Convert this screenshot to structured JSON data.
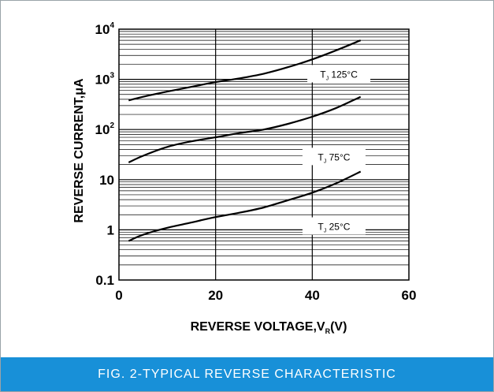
{
  "caption": "FIG. 2-TYPICAL  REVERSE  CHARACTERISTIC",
  "chart_data": {
    "type": "line",
    "title": "",
    "xlabel": "REVERSE  VOLTAGE,V",
    "xlabel_sub": "R",
    "xlabel_suffix": "(V)",
    "ylabel": "REVERSE  CURRENT,μA",
    "xlim": [
      0,
      60
    ],
    "ylim": [
      0.1,
      10000
    ],
    "yscale": "log",
    "grid": true,
    "x_ticks": [
      {
        "value": 0,
        "label": "0"
      },
      {
        "value": 20,
        "label": "20"
      },
      {
        "value": 40,
        "label": "40"
      },
      {
        "value": 60,
        "label": "60"
      }
    ],
    "y_ticks": [
      {
        "value": 0.1,
        "base": "0.1",
        "exp": ""
      },
      {
        "value": 1,
        "base": "1",
        "exp": ""
      },
      {
        "value": 10,
        "base": "10",
        "exp": ""
      },
      {
        "value": 100,
        "base": "10",
        "exp": "2"
      },
      {
        "value": 1000,
        "base": "10",
        "exp": "3"
      },
      {
        "value": 10000,
        "base": "10",
        "exp": "4"
      }
    ],
    "series": [
      {
        "name": "TJ 125°C",
        "label_base": "T",
        "label_sub": "J",
        "label_text": "125°C",
        "label_at": [
          45.5,
          1250
        ],
        "x": [
          2,
          5,
          10,
          15,
          20,
          25,
          30,
          35,
          40,
          45,
          50
        ],
        "y": [
          380,
          450,
          570,
          710,
          880,
          1050,
          1300,
          1750,
          2500,
          3800,
          6000
        ]
      },
      {
        "name": "TJ 75°C",
        "label_base": "T",
        "label_sub": "J",
        "label_text": "75°C",
        "label_at": [
          44.5,
          28
        ],
        "x": [
          2,
          5,
          10,
          15,
          20,
          25,
          30,
          35,
          40,
          45,
          50
        ],
        "y": [
          22,
          30,
          45,
          58,
          70,
          85,
          100,
          130,
          180,
          270,
          450
        ]
      },
      {
        "name": "TJ 25°C",
        "label_base": "T",
        "label_sub": "J",
        "label_text": "25°C",
        "label_at": [
          44.5,
          1.15
        ],
        "x": [
          2,
          5,
          10,
          15,
          20,
          25,
          30,
          35,
          40,
          45,
          50
        ],
        "y": [
          0.6,
          0.8,
          1.1,
          1.4,
          1.8,
          2.2,
          2.8,
          3.9,
          5.5,
          8.5,
          14.5
        ]
      }
    ]
  }
}
